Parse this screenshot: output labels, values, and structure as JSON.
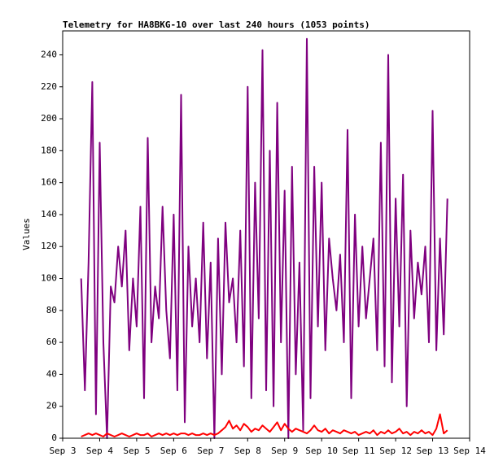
{
  "chart_data": {
    "type": "line",
    "title": "Telemetry for HA8BKG-10 over last 240 hours (1053 points)",
    "ylabel": "Values",
    "xlim": [
      3,
      14
    ],
    "xticks": [
      {
        "value": 3,
        "label": "Sep 3"
      },
      {
        "value": 4,
        "label": "Sep 4"
      },
      {
        "value": 5,
        "label": "Sep 5"
      },
      {
        "value": 6,
        "label": "Sep 6"
      },
      {
        "value": 7,
        "label": "Sep 7"
      },
      {
        "value": 8,
        "label": "Sep 8"
      },
      {
        "value": 9,
        "label": "Sep 9"
      },
      {
        "value": 10,
        "label": "Sep 10"
      },
      {
        "value": 11,
        "label": "Sep 11"
      },
      {
        "value": 12,
        "label": "Sep 12"
      },
      {
        "value": 13,
        "label": "Sep 13"
      },
      {
        "value": 14,
        "label": "Sep 14"
      }
    ],
    "ylim": [
      0,
      255
    ],
    "yticks": [
      0,
      20,
      40,
      60,
      80,
      100,
      120,
      140,
      160,
      180,
      200,
      220,
      240
    ],
    "x": [
      3.5,
      3.6,
      3.7,
      3.8,
      3.9,
      4.0,
      4.1,
      4.2,
      4.3,
      4.4,
      4.5,
      4.6,
      4.7,
      4.8,
      4.9,
      5.0,
      5.1,
      5.2,
      5.3,
      5.4,
      5.5,
      5.6,
      5.7,
      5.8,
      5.9,
      6.0,
      6.1,
      6.2,
      6.3,
      6.4,
      6.5,
      6.6,
      6.7,
      6.8,
      6.9,
      7.0,
      7.1,
      7.2,
      7.3,
      7.4,
      7.5,
      7.6,
      7.7,
      7.8,
      7.9,
      8.0,
      8.1,
      8.2,
      8.3,
      8.4,
      8.5,
      8.6,
      8.7,
      8.8,
      8.9,
      9.0,
      9.1,
      9.2,
      9.3,
      9.4,
      9.5,
      9.6,
      9.7,
      9.8,
      9.9,
      10.0,
      10.1,
      10.2,
      10.3,
      10.4,
      10.5,
      10.6,
      10.7,
      10.8,
      10.9,
      11.0,
      11.1,
      11.2,
      11.3,
      11.4,
      11.5,
      11.6,
      11.7,
      11.8,
      11.9,
      12.0,
      12.1,
      12.2,
      12.3,
      12.4,
      12.5,
      12.6,
      12.7,
      12.8,
      12.9,
      13.0,
      13.1,
      13.2,
      13.3,
      13.4
    ],
    "series": [
      {
        "color": "#7f007f",
        "values": [
          100,
          30,
          110,
          223,
          15,
          185,
          60,
          0,
          95,
          85,
          120,
          95,
          130,
          55,
          100,
          70,
          145,
          25,
          188,
          60,
          95,
          75,
          145,
          80,
          50,
          140,
          30,
          215,
          10,
          120,
          70,
          100,
          60,
          135,
          50,
          110,
          0,
          125,
          40,
          135,
          85,
          100,
          60,
          130,
          45,
          220,
          25,
          160,
          75,
          243,
          30,
          180,
          20,
          210,
          60,
          155,
          0,
          170,
          40,
          110,
          5,
          250,
          25,
          170,
          70,
          160,
          55,
          125,
          100,
          80,
          115,
          60,
          193,
          25,
          140,
          70,
          120,
          75,
          100,
          125,
          55,
          185,
          45,
          240,
          35,
          150,
          70,
          165,
          20,
          130,
          75,
          110,
          90,
          120,
          60,
          205,
          55,
          125,
          65,
          150
        ]
      },
      {
        "color": "#ff0000",
        "values": [
          1,
          2,
          3,
          2,
          3,
          2,
          1,
          3,
          2,
          1,
          2,
          3,
          2,
          1,
          2,
          3,
          2,
          2,
          3,
          1,
          2,
          3,
          2,
          3,
          2,
          3,
          2,
          3,
          3,
          2,
          3,
          2,
          2,
          3,
          2,
          3,
          2,
          3,
          5,
          7,
          11,
          6,
          8,
          5,
          9,
          7,
          4,
          6,
          5,
          8,
          6,
          4,
          7,
          10,
          5,
          9,
          6,
          4,
          6,
          5,
          4,
          3,
          5,
          8,
          5,
          4,
          6,
          3,
          5,
          4,
          3,
          5,
          4,
          3,
          4,
          2,
          3,
          4,
          3,
          5,
          2,
          4,
          3,
          5,
          3,
          4,
          6,
          3,
          4,
          2,
          4,
          3,
          5,
          3,
          4,
          2,
          6,
          15,
          3,
          5
        ]
      }
    ]
  }
}
